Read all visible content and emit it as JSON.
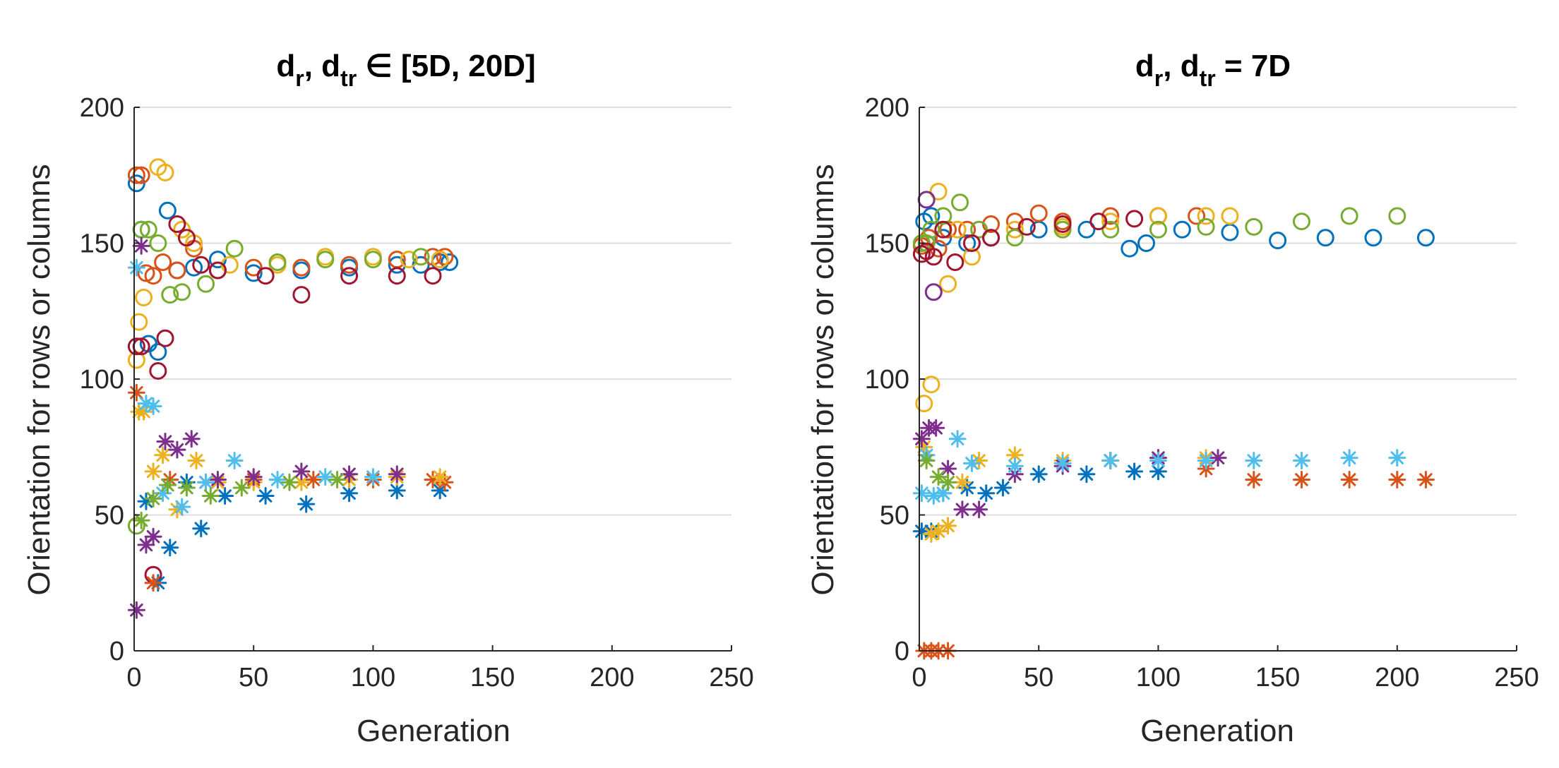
{
  "colors": {
    "blue": "#0072BD",
    "orange": "#D95319",
    "yellow": "#EDB120",
    "purple": "#7E2F8E",
    "green": "#77AC30",
    "cyan": "#4DBEEE",
    "maroon": "#A2142F"
  },
  "chart_data": [
    {
      "type": "scatter",
      "title_main": "d",
      "title_sub1": "r",
      "title_mid": ", d",
      "title_sub2": "tr",
      "title_tail": " ∈ [5D, 20D]",
      "xlabel": "Generation",
      "ylabel": "Orientation for rows  or columns",
      "xlim": [
        0,
        250
      ],
      "ylim": [
        0,
        200
      ],
      "xticks": [
        "0",
        "50",
        "100",
        "150",
        "200",
        "250"
      ],
      "yticks": [
        "0",
        "50",
        "100",
        "150",
        "200"
      ],
      "grid": "horizontal",
      "series": [
        {
          "name": "rows-blue",
          "marker": "o",
          "color": "blue",
          "x": [
            1,
            3,
            6,
            10,
            14,
            18,
            25,
            35,
            50,
            70,
            90,
            110,
            120,
            128,
            132
          ],
          "y": [
            172,
            155,
            113,
            110,
            162,
            140,
            141,
            144,
            139,
            140,
            141,
            142,
            142,
            143,
            143
          ]
        },
        {
          "name": "rows-orange",
          "marker": "o",
          "color": "orange",
          "x": [
            1,
            3,
            5,
            8,
            12,
            18,
            25,
            35,
            50,
            70,
            90,
            110,
            125,
            130
          ],
          "y": [
            175,
            175,
            139,
            138,
            143,
            140,
            148,
            140,
            141,
            141,
            142,
            144,
            145,
            145
          ]
        },
        {
          "name": "rows-yellow",
          "marker": "o",
          "color": "yellow",
          "x": [
            1,
            2,
            4,
            10,
            13,
            20,
            25,
            40,
            60,
            80,
            100,
            115,
            128
          ],
          "y": [
            107,
            121,
            130,
            178,
            176,
            155,
            150,
            142,
            142,
            145,
            145,
            144,
            144
          ]
        },
        {
          "name": "rows-green",
          "marker": "o",
          "color": "green",
          "x": [
            1,
            3,
            6,
            10,
            15,
            20,
            30,
            42,
            60,
            80,
            100,
            120
          ],
          "y": [
            46,
            155,
            155,
            150,
            131,
            132,
            135,
            148,
            143,
            144,
            144,
            145
          ]
        },
        {
          "name": "rows-maroon",
          "marker": "o",
          "color": "maroon",
          "x": [
            1,
            3,
            8,
            10,
            13,
            18,
            22,
            28,
            35,
            55,
            70,
            90,
            110,
            125
          ],
          "y": [
            112,
            112,
            28,
            103,
            115,
            157,
            152,
            142,
            140,
            138,
            131,
            138,
            138,
            138
          ]
        },
        {
          "name": "cols-blue",
          "marker": "*",
          "color": "blue",
          "x": [
            5,
            10,
            15,
            22,
            28,
            38,
            55,
            72,
            90,
            110,
            128
          ],
          "y": [
            55,
            25,
            38,
            62,
            45,
            57,
            57,
            54,
            58,
            59,
            59
          ]
        },
        {
          "name": "cols-orange",
          "marker": "*",
          "color": "orange",
          "x": [
            1,
            8,
            15,
            30,
            50,
            75,
            100,
            125,
            130
          ],
          "y": [
            95,
            25,
            63,
            62,
            63,
            63,
            63,
            63,
            62
          ]
        },
        {
          "name": "cols-yellow",
          "marker": "*",
          "color": "yellow",
          "x": [
            2,
            4,
            8,
            12,
            18,
            26,
            35,
            50,
            70,
            90,
            110,
            128
          ],
          "y": [
            88,
            88,
            66,
            72,
            52,
            70,
            62,
            62,
            62,
            63,
            64,
            64
          ]
        },
        {
          "name": "cols-purple",
          "marker": "*",
          "color": "purple",
          "x": [
            1,
            3,
            5,
            8,
            13,
            18,
            24,
            35,
            50,
            70,
            90,
            110
          ],
          "y": [
            15,
            149,
            39,
            42,
            77,
            74,
            78,
            63,
            64,
            66,
            65,
            65
          ]
        },
        {
          "name": "cols-cyan",
          "marker": "*",
          "color": "cyan",
          "x": [
            1,
            5,
            8,
            12,
            20,
            30,
            42,
            60,
            80,
            100
          ],
          "y": [
            141,
            91,
            90,
            58,
            53,
            62,
            70,
            63,
            64,
            64
          ]
        },
        {
          "name": "cols-green",
          "marker": "*",
          "color": "green",
          "x": [
            3,
            8,
            14,
            22,
            32,
            45,
            65,
            85
          ],
          "y": [
            48,
            56,
            61,
            60,
            57,
            60,
            62,
            63
          ]
        }
      ]
    },
    {
      "type": "scatter",
      "title_main": "d",
      "title_sub1": "r",
      "title_mid": ", d",
      "title_sub2": "tr",
      "title_tail": " = 7D",
      "xlabel": "Generation",
      "ylabel": "Orientation for rows  or columns",
      "xlim": [
        0,
        250
      ],
      "ylim": [
        0,
        200
      ],
      "xticks": [
        "0",
        "50",
        "100",
        "150",
        "200",
        "250"
      ],
      "yticks": [
        "0",
        "50",
        "100",
        "150",
        "200"
      ],
      "grid": "horizontal",
      "series": [
        {
          "name": "rows-blue",
          "marker": "o",
          "color": "blue",
          "x": [
            2,
            5,
            10,
            20,
            30,
            50,
            70,
            88,
            95,
            110,
            130,
            150,
            170,
            190,
            212
          ],
          "y": [
            158,
            160,
            152,
            150,
            152,
            155,
            155,
            148,
            150,
            155,
            154,
            151,
            152,
            152,
            152
          ]
        },
        {
          "name": "rows-orange",
          "marker": "o",
          "color": "orange",
          "x": [
            1,
            4,
            8,
            12,
            20,
            30,
            40,
            50,
            60,
            80,
            100,
            116
          ],
          "y": [
            149,
            152,
            148,
            155,
            155,
            157,
            158,
            161,
            158,
            160,
            160,
            160
          ]
        },
        {
          "name": "rows-yellow",
          "marker": "o",
          "color": "yellow",
          "x": [
            2,
            5,
            8,
            12,
            16,
            22,
            40,
            60,
            80,
            100,
            120,
            130
          ],
          "y": [
            91,
            98,
            169,
            135,
            155,
            145,
            155,
            156,
            158,
            160,
            160,
            160
          ]
        },
        {
          "name": "rows-green",
          "marker": "o",
          "color": "green",
          "x": [
            1,
            3,
            5,
            10,
            17,
            25,
            40,
            60,
            80,
            100,
            120,
            140,
            160,
            180,
            200
          ],
          "y": [
            150,
            150,
            155,
            160,
            165,
            155,
            152,
            155,
            155,
            155,
            156,
            156,
            158,
            160,
            160
          ]
        },
        {
          "name": "rows-maroon",
          "marker": "o",
          "color": "maroon",
          "x": [
            1,
            3,
            6,
            10,
            15,
            22,
            30,
            45,
            60,
            75,
            90
          ],
          "y": [
            146,
            147,
            145,
            155,
            143,
            150,
            152,
            156,
            157,
            158,
            159
          ]
        },
        {
          "name": "rows-purple",
          "marker": "o",
          "color": "purple",
          "x": [
            3,
            6
          ],
          "y": [
            166,
            132
          ]
        },
        {
          "name": "cols-blue",
          "marker": "*",
          "color": "blue",
          "x": [
            1,
            5,
            10,
            20,
            28,
            35,
            50,
            70,
            90,
            100
          ],
          "y": [
            44,
            44,
            58,
            60,
            58,
            60,
            65,
            65,
            66,
            66
          ]
        },
        {
          "name": "cols-orange",
          "marker": "*",
          "color": "orange",
          "x": [
            2,
            5,
            8,
            12,
            120,
            140,
            160,
            180,
            200,
            212
          ],
          "y": [
            0,
            0,
            0,
            0,
            67,
            63,
            63,
            63,
            63,
            63
          ]
        },
        {
          "name": "cols-yellow",
          "marker": "*",
          "color": "yellow",
          "x": [
            2,
            5,
            8,
            12,
            18,
            25,
            40,
            60,
            80,
            100,
            120
          ],
          "y": [
            75,
            43,
            44,
            46,
            62,
            70,
            72,
            70,
            70,
            71,
            71
          ]
        },
        {
          "name": "cols-purple",
          "marker": "*",
          "color": "purple",
          "x": [
            1,
            4,
            7,
            12,
            18,
            25,
            40,
            60,
            80,
            100,
            125
          ],
          "y": [
            78,
            82,
            82,
            67,
            52,
            52,
            65,
            68,
            70,
            71,
            71
          ]
        },
        {
          "name": "cols-cyan",
          "marker": "*",
          "color": "cyan",
          "x": [
            1,
            3,
            6,
            10,
            16,
            22,
            40,
            60,
            80,
            100,
            120,
            140,
            160,
            180,
            200
          ],
          "y": [
            58,
            72,
            57,
            58,
            78,
            69,
            68,
            69,
            70,
            70,
            70,
            70,
            70,
            71,
            71
          ]
        },
        {
          "name": "cols-green",
          "marker": "*",
          "color": "green",
          "x": [
            3,
            8,
            12
          ],
          "y": [
            70,
            64,
            62
          ]
        }
      ]
    }
  ]
}
